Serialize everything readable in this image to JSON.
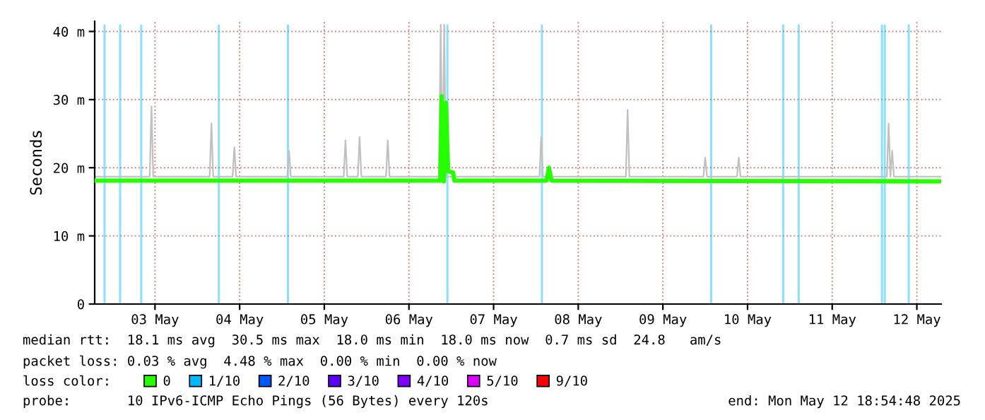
{
  "chart_data": {
    "type": "line",
    "ylabel": "Seconds",
    "xlim": [
      "2025-05-02T18:54",
      "2025-05-12T18:54"
    ],
    "xticks": [
      {
        "value": "2025-05-03T12:00",
        "label": "03 May"
      },
      {
        "value": "2025-05-04T12:00",
        "label": "04 May"
      },
      {
        "value": "2025-05-05T12:00",
        "label": "05 May"
      },
      {
        "value": "2025-05-06T12:00",
        "label": "06 May"
      },
      {
        "value": "2025-05-07T12:00",
        "label": "07 May"
      },
      {
        "value": "2025-05-08T12:00",
        "label": "08 May"
      },
      {
        "value": "2025-05-09T12:00",
        "label": "09 May"
      },
      {
        "value": "2025-05-10T12:00",
        "label": "10 May"
      },
      {
        "value": "2025-05-11T12:00",
        "label": "11 May"
      },
      {
        "value": "2025-05-12T12:00",
        "label": "12 May"
      }
    ],
    "ylim": [
      0,
      41.5
    ],
    "yticks": [
      0,
      {
        "value": 10,
        "label": "10 m"
      },
      {
        "value": 20,
        "label": "20 m"
      },
      {
        "value": 30,
        "label": "30 m"
      },
      {
        "value": 40,
        "label": "40 m"
      }
    ],
    "grid": true,
    "legend": "bottom",
    "legend_title": "loss color:",
    "series": [
      {
        "color": "#c0c0c0",
        "x": [
          "2025-05-02T18:54",
          "2025-05-03T10:30",
          "2025-05-03T11:00",
          "2025-05-03T11:30",
          "2025-05-04T03:30",
          "2025-05-04T04:00",
          "2025-05-04T04:30",
          "2025-05-04T10:00",
          "2025-05-04T10:30",
          "2025-05-04T11:00",
          "2025-05-05T01:30",
          "2025-05-05T02:00",
          "2025-05-05T02:30",
          "2025-05-05T17:30",
          "2025-05-05T18:00",
          "2025-05-05T18:30",
          "2025-05-05T21:30",
          "2025-05-05T22:00",
          "2025-05-05T22:30",
          "2025-05-06T05:30",
          "2025-05-06T06:00",
          "2025-05-06T06:30",
          "2025-05-06T20:30",
          "2025-05-06T21:00",
          "2025-05-06T21:30",
          "2025-05-06T22:00",
          "2025-05-06T22:30",
          "2025-05-08T01:00",
          "2025-05-08T01:30",
          "2025-05-08T02:00",
          "2025-05-09T01:30",
          "2025-05-09T02:00",
          "2025-05-09T02:30",
          "2025-05-09T23:30",
          "2025-05-10T00:00",
          "2025-05-10T00:30",
          "2025-05-10T09:00",
          "2025-05-10T09:30",
          "2025-05-10T10:00",
          "2025-05-12T03:30",
          "2025-05-12T04:00",
          "2025-05-12T04:30",
          "2025-05-12T05:00",
          "2025-05-12T05:30",
          "2025-05-12T18:54"
        ],
        "values": [
          18.7,
          18.7,
          29,
          18.7,
          18.7,
          26.5,
          18.7,
          18.7,
          23,
          18.7,
          18.7,
          22.5,
          18.7,
          18.7,
          24,
          18.7,
          18.7,
          24.5,
          18.7,
          18.7,
          24,
          18.7,
          18.7,
          41,
          18.7,
          41,
          18.7,
          18.7,
          24.5,
          18.7,
          18.7,
          28.5,
          18.7,
          18.7,
          21.5,
          18.7,
          18.7,
          21.5,
          18.7,
          18.7,
          26.5,
          18.7,
          22.5,
          18.7,
          18.7
        ]
      },
      {
        "name": "0",
        "color": "#26ff00",
        "x": [
          "2025-05-02T18:54",
          "2025-05-06T20:54",
          "2025-05-06T21:18",
          "2025-05-06T21:54",
          "2025-05-06T22:30",
          "2025-05-06T23:06",
          "2025-05-07T00:30",
          "2025-05-07T00:54",
          "2025-05-08T03:00",
          "2025-05-08T03:42",
          "2025-05-08T04:24",
          "2025-05-12T18:54"
        ],
        "values": [
          18.1,
          18.1,
          30.5,
          18,
          29.5,
          19.5,
          19.3,
          18.1,
          18.1,
          20,
          18.1,
          18
        ]
      },
      {
        "type": "bar",
        "name": "1/10",
        "color": "#00b8ff",
        "x": [
          "2025-05-02T21:42",
          "2025-05-03T02:06",
          "2025-05-03T08:06",
          "2025-05-04T06:06",
          "2025-05-05T01:42",
          "2025-05-06T22:54",
          "2025-05-08T01:42",
          "2025-05-10T01:42",
          "2025-05-10T22:06",
          "2025-05-11T02:30",
          "2025-05-12T02:06",
          "2025-05-12T02:54",
          "2025-05-12T09:42"
        ],
        "values": [
          41,
          41,
          41,
          41,
          41,
          41,
          41,
          41,
          41,
          41,
          41,
          41,
          41
        ]
      },
      {
        "type": "bar",
        "name": "2/10",
        "color": "#0059ff"
      },
      {
        "type": "bar",
        "name": "3/10",
        "color": "#5e00ff"
      },
      {
        "type": "bar",
        "name": "4/10",
        "color": "#7e00ff"
      },
      {
        "type": "bar",
        "name": "5/10",
        "color": "#dd00ff"
      },
      {
        "type": "bar",
        "name": "9/10",
        "color": "#ff0000"
      }
    ],
    "annotations": [
      "median rtt:  18.1 ms avg  30.5 ms max  18.0 ms min  18.0 ms now  0.7 ms sd  24.8   am/s",
      "packet loss: 0.03 % avg  4.48 % max  0.00 % min  0.00 % now",
      "probe:       10 IPv6-ICMP Echo Pings (56 Bytes) every 120s",
      "end: Mon May 12 18:54:48 2025"
    ]
  }
}
